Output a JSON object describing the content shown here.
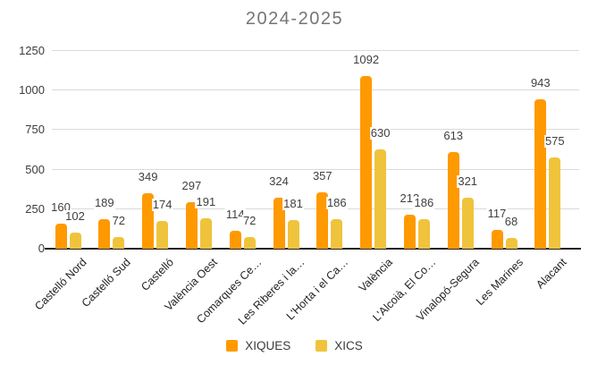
{
  "chart_data": {
    "type": "bar",
    "title": "2024-2025",
    "title_color": "#757575",
    "categories": [
      "Castelló Nord",
      "Castelló Sud",
      "Castelló",
      "València Oest",
      "Comarques Ce…",
      "Les Riberes i la…",
      "L'Horta i el Ca…",
      "València",
      "L'Alcoià, El Co…",
      "Vinalopó-Segura",
      "Les Marines",
      "Alacant"
    ],
    "series": [
      {
        "name": "XIQUES",
        "color": "#FF9900",
        "values": [
          160,
          189,
          349,
          297,
          114,
          324,
          357,
          1092,
          213,
          613,
          117,
          943
        ]
      },
      {
        "name": "XICS",
        "color": "#F0C33C",
        "values": [
          102,
          72,
          174,
          191,
          72,
          181,
          186,
          630,
          186,
          321,
          68,
          575
        ]
      }
    ],
    "xlabel": "",
    "ylabel": "",
    "ylim": [
      0,
      1250
    ],
    "yticks": [
      0,
      250,
      500,
      750,
      1000,
      1250
    ],
    "grid": true,
    "legend_position": "bottom",
    "annotations": "value labels shown above each bar"
  },
  "colors": {
    "background": "#ffffff",
    "gridline": "#dadada",
    "axis_line": "#212121",
    "ytick_label": "#3c3c3c",
    "category_label": "#222222",
    "value_label": "#404040",
    "legend_label": "#3c3c3c"
  }
}
